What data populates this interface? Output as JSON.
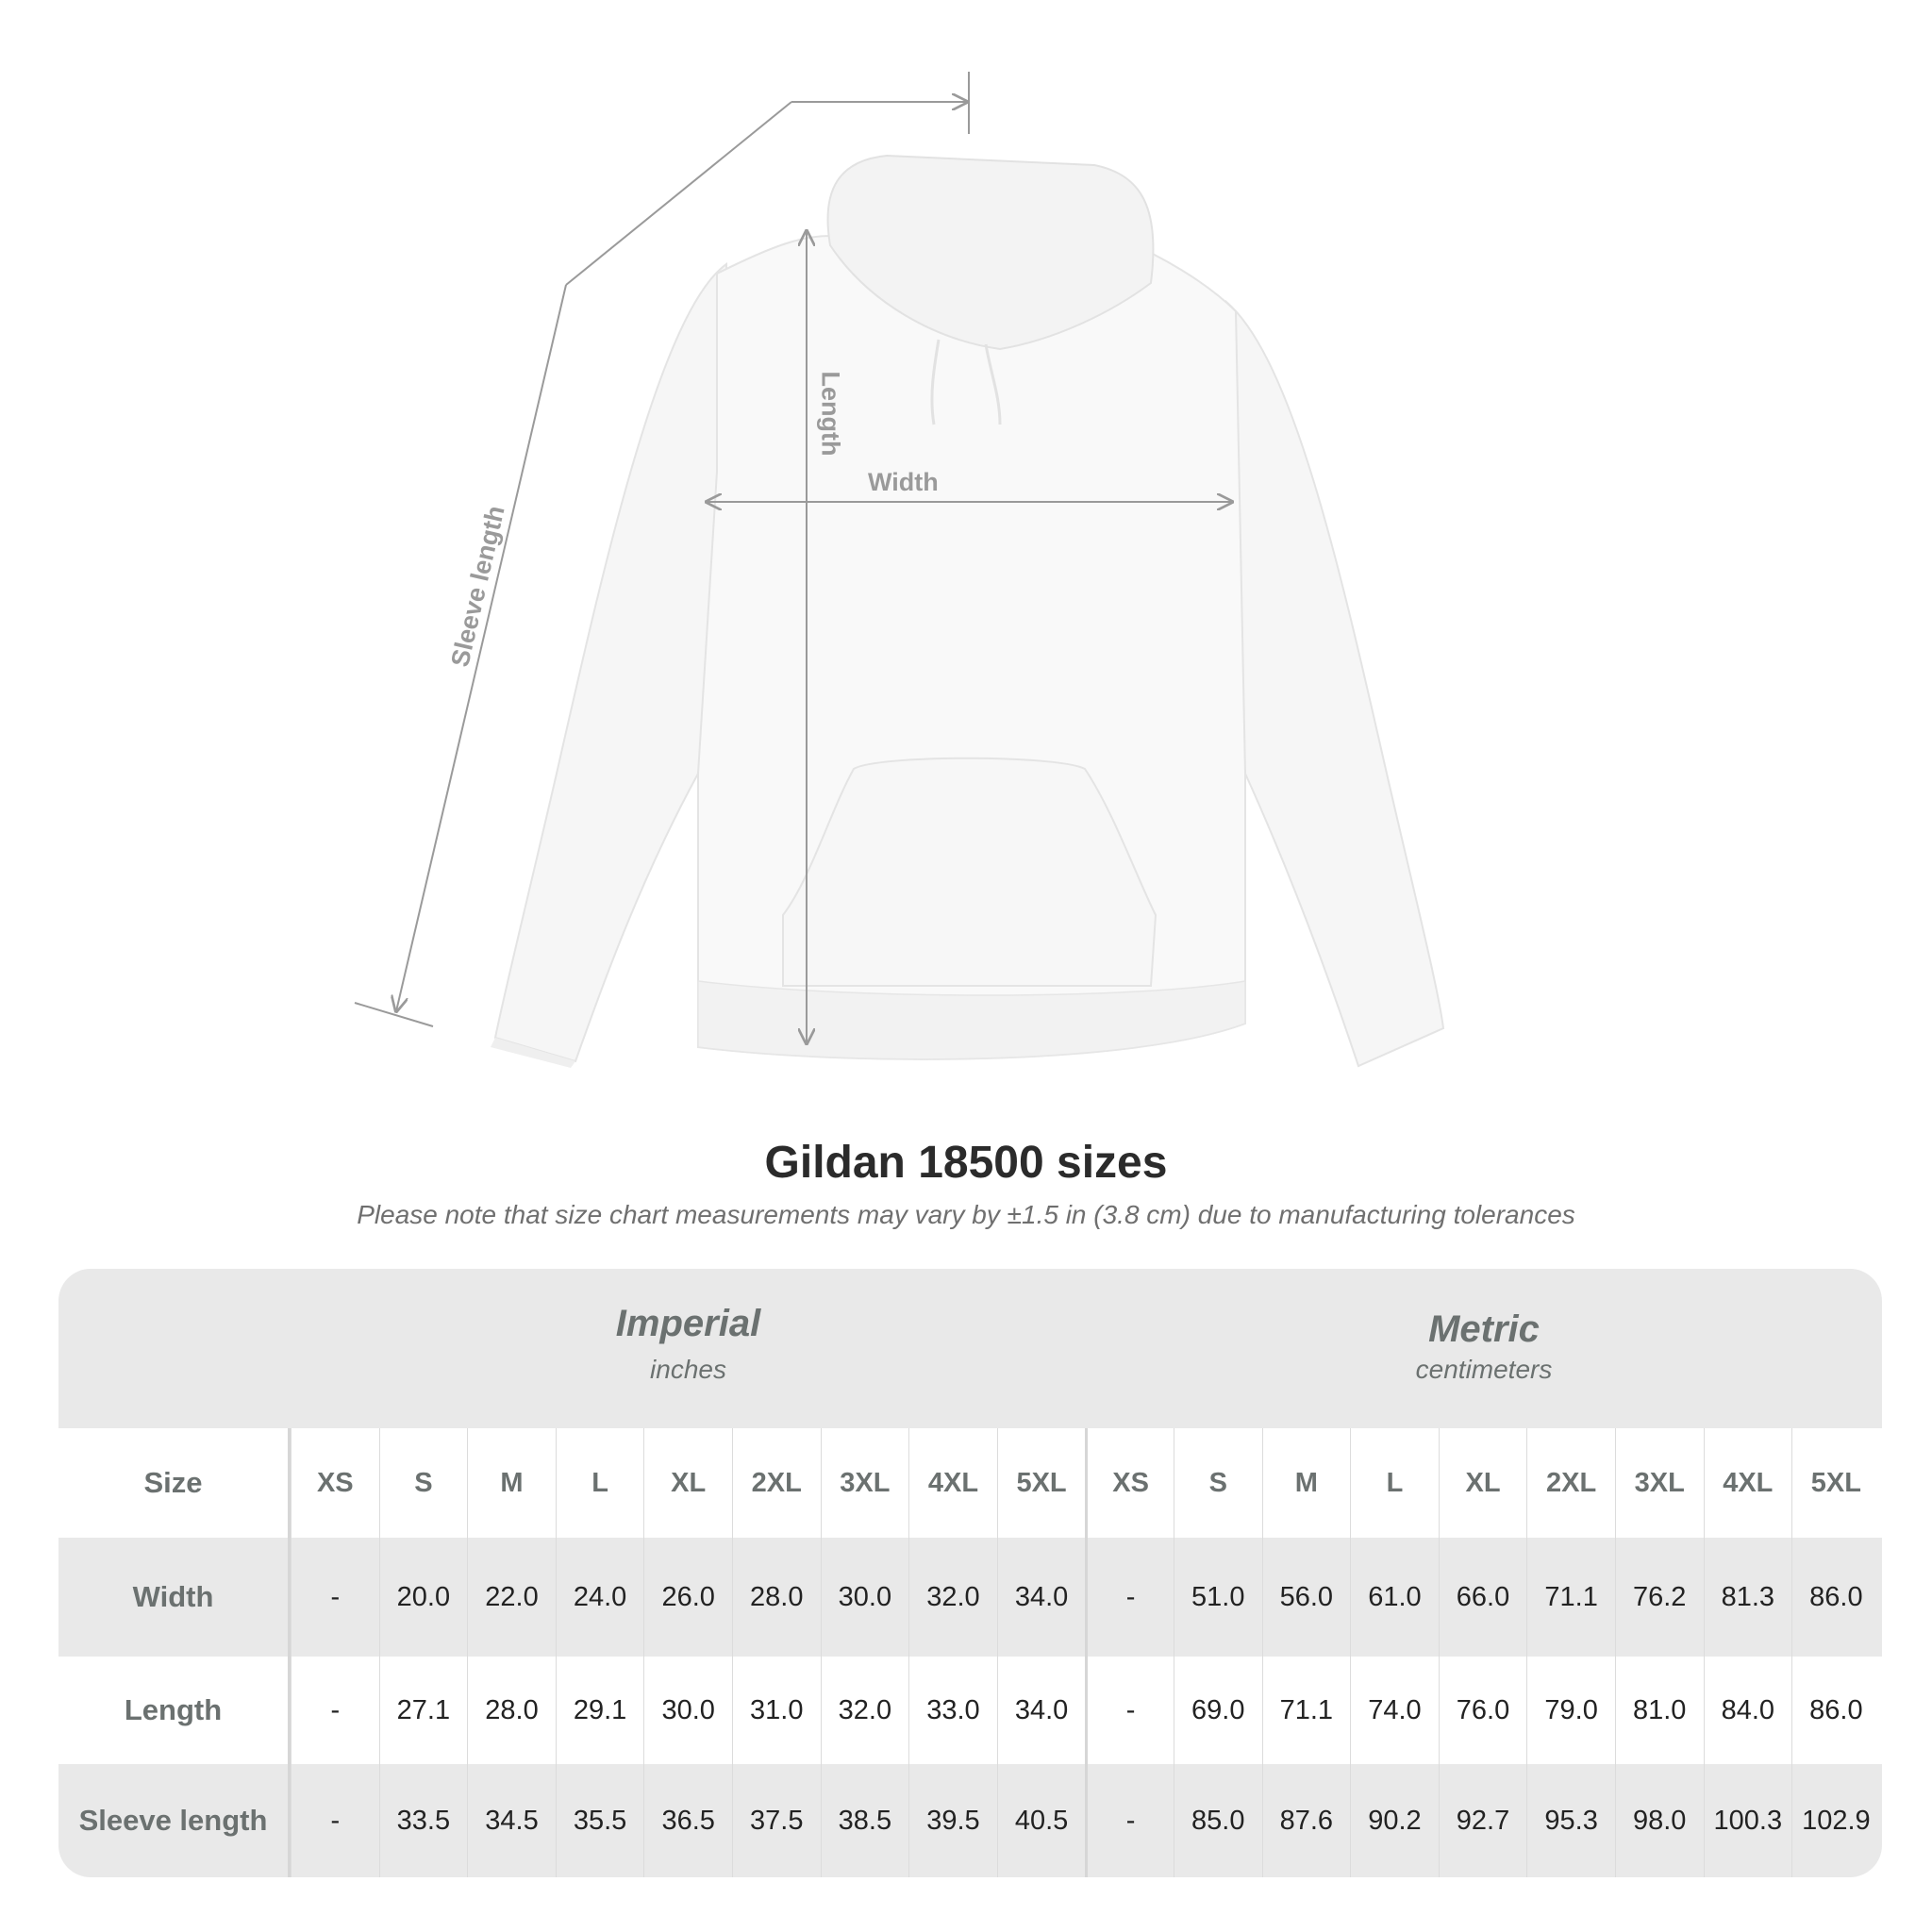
{
  "illustration": {
    "labels": {
      "sleeve": "Sleeve length",
      "length": "Length",
      "width": "Width"
    },
    "line_color": "#9a9a9a"
  },
  "title": "Gildan 18500 sizes",
  "note": "Please note that size chart measurements may vary by ±1.5 in (3.8 cm) due to manufacturing tolerances",
  "table": {
    "imperial": {
      "heading": "Imperial",
      "unit": "inches"
    },
    "metric": {
      "heading": "Metric",
      "unit": "centimeters"
    },
    "size_label": "Size",
    "sizes": [
      "XS",
      "S",
      "M",
      "L",
      "XL",
      "2XL",
      "3XL",
      "4XL",
      "5XL"
    ],
    "rows": [
      {
        "label": "Width",
        "imperial": [
          "-",
          "20.0",
          "22.0",
          "24.0",
          "26.0",
          "28.0",
          "30.0",
          "32.0",
          "34.0"
        ],
        "metric": [
          "-",
          "51.0",
          "56.0",
          "61.0",
          "66.0",
          "71.1",
          "76.2",
          "81.3",
          "86.0"
        ]
      },
      {
        "label": "Length",
        "imperial": [
          "-",
          "27.1",
          "28.0",
          "29.1",
          "30.0",
          "31.0",
          "32.0",
          "33.0",
          "34.0"
        ],
        "metric": [
          "-",
          "69.0",
          "71.1",
          "74.0",
          "76.0",
          "79.0",
          "81.0",
          "84.0",
          "86.0"
        ]
      },
      {
        "label": "Sleeve length",
        "imperial": [
          "-",
          "33.5",
          "34.5",
          "35.5",
          "36.5",
          "37.5",
          "38.5",
          "39.5",
          "40.5"
        ],
        "metric": [
          "-",
          "85.0",
          "87.6",
          "90.2",
          "92.7",
          "95.3",
          "98.0",
          "100.3",
          "102.9"
        ]
      }
    ],
    "colors": {
      "band": "#e9e9e9",
      "header_text": "#6b7170"
    }
  }
}
